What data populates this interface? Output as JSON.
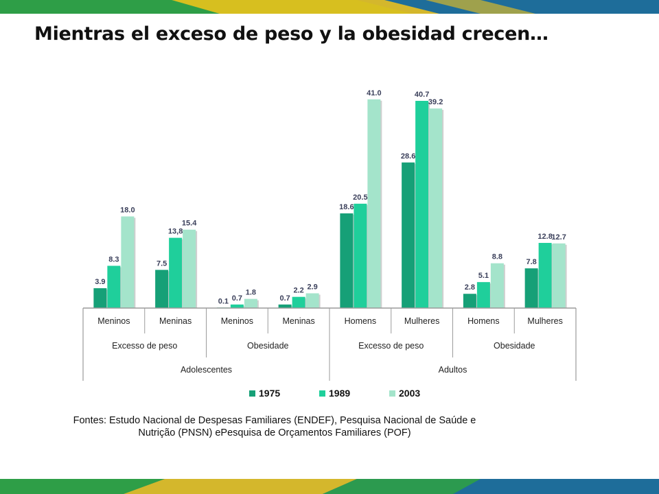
{
  "title": "Mientras el exceso de peso y la obesidad crecen…",
  "source": {
    "line1": "Fontes: Estudo Nacional de Despesas Familiares  (ENDEF), Pesquisa Nacional  de Saúde e",
    "line2": "Nutrição (PNSN)  ePesquisa de Orçamentos Familiares (POF)"
  },
  "colors": {
    "band_dark": "#1e6d9a",
    "band_green": "#2e9e47",
    "band_yellow": "#f5c419"
  },
  "chart_data": {
    "type": "bar",
    "title": "",
    "xlabel": "",
    "ylabel": "",
    "grid": false,
    "legend_position": "bottom",
    "ylim": [
      0,
      42
    ],
    "categories": [
      "Meninos",
      "Meninas",
      "Meninos",
      "Meninas",
      "Homens",
      "Mulheres",
      "Homens",
      "Mulheres"
    ],
    "category_groups": [
      {
        "label": "Excesso de peso",
        "span": 2
      },
      {
        "label": "Obesidade",
        "span": 2
      },
      {
        "label": "Excesso de peso",
        "span": 2
      },
      {
        "label": "Obesidade",
        "span": 2
      }
    ],
    "population_groups": [
      {
        "label": "Adolescentes",
        "span": 4
      },
      {
        "label": "Adultos",
        "span": 4
      }
    ],
    "series": [
      {
        "name": "1975",
        "color": "#16a077",
        "values": [
          3.9,
          7.5,
          0.1,
          0.7,
          18.6,
          28.6,
          2.8,
          7.8
        ],
        "labels": [
          "3.9",
          "7.5",
          "0.1",
          "0.7",
          "18.6",
          "28.6",
          "2.8",
          "7.8"
        ]
      },
      {
        "name": "1989",
        "color": "#1fcf9b",
        "values": [
          8.3,
          13.8,
          0.7,
          2.2,
          20.5,
          40.7,
          5.1,
          12.8
        ],
        "labels": [
          "8.3",
          "13,8",
          "0.7",
          "2.2",
          "20.5",
          "40.7",
          "5.1",
          "12.8"
        ]
      },
      {
        "name": "2003",
        "color": "#a4e4cb",
        "values": [
          18.0,
          15.4,
          1.8,
          2.9,
          41.0,
          39.2,
          8.8,
          12.7
        ],
        "labels": [
          "18.0",
          "15.4",
          "1.8",
          "2.9",
          "41.0",
          "39.2",
          "8.8",
          "12.7"
        ]
      }
    ]
  }
}
